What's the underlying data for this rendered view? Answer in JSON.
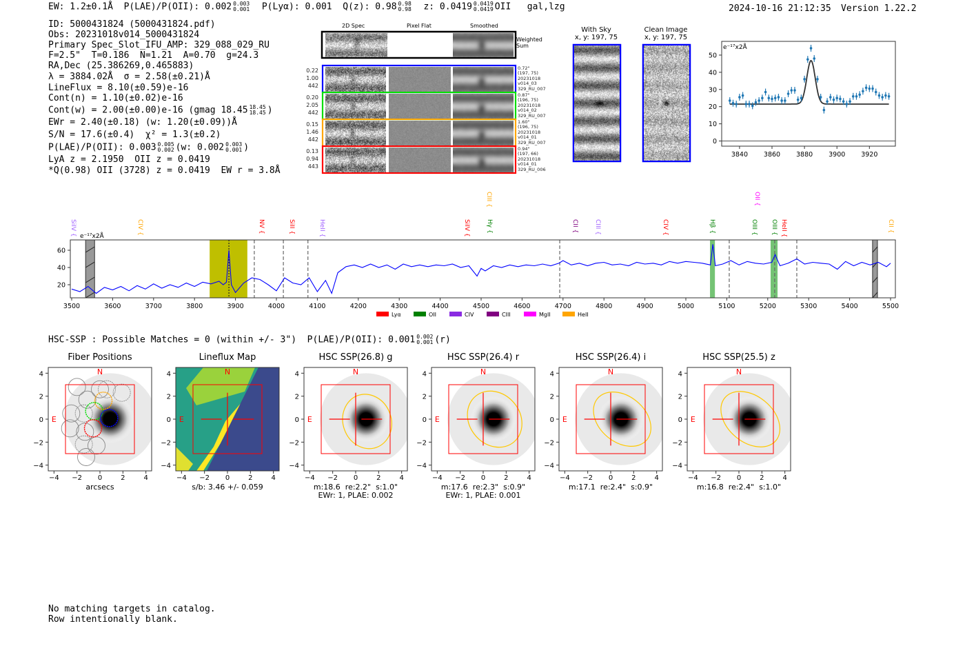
{
  "header": {
    "segments": [
      {
        "t": "EW: 1.2±0.1Å  P(LAE)/P(OII): 0.002"
      },
      {
        "hi": "0.003",
        "lo": "0.001"
      },
      {
        "t": "  P(Lyα): 0.001  Q(z): 0.98"
      },
      {
        "hi": "0.98",
        "lo": "0.98"
      },
      {
        "t": "  z: 0.0419"
      },
      {
        "hi": "0.0419",
        "lo": "0.0419"
      },
      {
        "t": "OII   gal,lzg"
      }
    ],
    "timestamp": "2024-10-16 21:12:35",
    "version": "Version 1.22.2"
  },
  "info_lines": [
    [
      {
        "t": "ID: 5000431824 (5000431824.pdf)"
      }
    ],
    [
      {
        "t": "Obs: 20231018v014_5000431824"
      }
    ],
    [
      {
        "t": "Primary Spec_Slot_IFU_AMP: 329_088_029_RU"
      }
    ],
    [
      {
        "t": "F=2.5\"  T=0.186  N=1.21  A=0.70  g=24.3"
      }
    ],
    [
      {
        "t": "RA,Dec (25.386269,0.465883)"
      }
    ],
    [
      {
        "t": "λ = 3884.02Å  σ = 2.58(±0.21)Å"
      }
    ],
    [
      {
        "t": "LineFlux = 8.10(±0.59)e-16"
      }
    ],
    [
      {
        "t": "Cont(n) = 1.10(±0.02)e-16"
      }
    ],
    [
      {
        "t": "Cont(w) = 2.00(±0.00)e-16 (gmag 18.45"
      },
      {
        "hi": "18.45",
        "lo": "18.45"
      },
      {
        "t": ")"
      }
    ],
    [
      {
        "t": "EWr = 2.40(±0.18) (w: 1.20(±0.09))Å"
      }
    ],
    [
      {
        "t": "S/N = 17.6(±0.4)  χ² = 1.3(±0.2)"
      }
    ],
    [
      {
        "t": "P(LAE)/P(OII): 0.003"
      },
      {
        "hi": "0.005",
        "lo": "0.002"
      },
      {
        "t": "(w: 0.002"
      },
      {
        "hi": "0.003",
        "lo": "0.001"
      },
      {
        "t": ")"
      }
    ],
    [
      {
        "t": "LyA z = 2.1950  OII z = 0.0419"
      }
    ],
    [
      {
        "t": "*Q(0.98) OII (3728) z = 0.0419  EW r = 3.8Å"
      }
    ]
  ],
  "spec2d": {
    "columns": [
      "2D Spec",
      "Pixel Flat",
      "Smoothed"
    ],
    "weighted_label": "Weighted\nSum",
    "rows": [
      {
        "color": "#0000ff",
        "left": "0.22\n1.00\n442",
        "right": "0.72\"\n(197, 75)\n20231018\nv014_03\n329_RU_007"
      },
      {
        "color": "#00dd00",
        "left": "0.20\n2.05\n442",
        "right": "0.87\"\n(196, 75)\n20231018\nv014_02\n329_RU_007"
      },
      {
        "color": "#ffa500",
        "left": "0.15\n1.46\n442",
        "right": "1.60\"\n(196, 75)\n20231018\nv014_01\n329_RU_007"
      },
      {
        "color": "#ff0000",
        "left": "0.13\n0.94\n443",
        "right": "0.94\"\n(197, 66)\n20231018\nv014_01\n329_RU_006"
      }
    ]
  },
  "cutouts": {
    "with_sky": "With Sky\nx, y: 197, 75",
    "clean": "Clean Image\nx, y: 197, 75"
  },
  "chart_data": [
    {
      "type": "scatter",
      "title": "",
      "ylabel": "e⁻¹⁷x2Å",
      "xlim": [
        3829,
        3936
      ],
      "ylim": [
        -3,
        58
      ],
      "xticks": [
        3840,
        3860,
        3880,
        3900,
        3920
      ],
      "yticks": [
        0,
        10,
        20,
        30,
        40,
        50
      ],
      "x": [
        3834,
        3836,
        3838,
        3840,
        3842,
        3844,
        3846,
        3848,
        3850,
        3852,
        3854,
        3856,
        3858,
        3860,
        3862,
        3864,
        3866,
        3868,
        3870,
        3872,
        3874,
        3876,
        3878,
        3880,
        3882,
        3884,
        3886,
        3888,
        3890,
        3892,
        3894,
        3896,
        3898,
        3900,
        3902,
        3904,
        3906,
        3908,
        3910,
        3912,
        3914,
        3916,
        3918,
        3920,
        3922,
        3924,
        3926,
        3928,
        3930,
        3932
      ],
      "y": [
        23.5,
        22,
        21.5,
        25.5,
        26.5,
        21.5,
        21.5,
        20.5,
        22.5,
        23.5,
        25,
        28.5,
        25,
        24.5,
        25,
        25.5,
        23.5,
        23.5,
        27.5,
        29.5,
        29.5,
        24,
        25,
        36,
        47.5,
        54,
        48,
        36,
        25.5,
        18,
        23,
        25.5,
        24,
        25,
        24.5,
        23,
        21.5,
        23,
        26,
        26,
        27,
        29,
        31,
        30.5,
        30.5,
        28.5,
        26.5,
        25.5,
        26.5,
        26
      ],
      "yerr": 2,
      "fit": {
        "continuum": 21.5,
        "amplitude": 25.3,
        "center": 3884.02,
        "sigma": 2.58,
        "range": [
          3834,
          3932
        ]
      },
      "colors": {
        "points": "#1f77b4",
        "fit": "#333333"
      }
    },
    {
      "type": "line",
      "ylabel": "e⁻¹⁷x2Å",
      "xlim": [
        3495,
        5512
      ],
      "ylim": [
        5,
        72
      ],
      "xticks": [
        3500,
        3600,
        3700,
        3800,
        3900,
        4000,
        4100,
        4200,
        4300,
        4400,
        4500,
        4600,
        4700,
        4800,
        4900,
        5000,
        5100,
        5200,
        5300,
        5400,
        5500
      ],
      "yticks": [
        20,
        40,
        60
      ],
      "x": [
        3500,
        3520,
        3540,
        3560,
        3580,
        3600,
        3620,
        3640,
        3660,
        3680,
        3700,
        3720,
        3740,
        3760,
        3780,
        3800,
        3820,
        3840,
        3860,
        3870,
        3878,
        3884,
        3890,
        3900,
        3920,
        3940,
        3960,
        3980,
        4000,
        4020,
        4040,
        4060,
        4080,
        4100,
        4120,
        4135,
        4150,
        4170,
        4190,
        4210,
        4230,
        4250,
        4270,
        4290,
        4310,
        4330,
        4350,
        4370,
        4390,
        4410,
        4430,
        4450,
        4470,
        4490,
        4500,
        4510,
        4530,
        4550,
        4570,
        4590,
        4610,
        4630,
        4650,
        4670,
        4690,
        4700,
        4720,
        4740,
        4760,
        4780,
        4800,
        4820,
        4840,
        4860,
        4880,
        4900,
        4920,
        4940,
        4960,
        4980,
        5000,
        5020,
        5040,
        5060,
        5066,
        5072,
        5090,
        5110,
        5130,
        5150,
        5170,
        5190,
        5210,
        5218,
        5230,
        5250,
        5271,
        5290,
        5310,
        5330,
        5350,
        5370,
        5390,
        5410,
        5430,
        5450,
        5470,
        5490,
        5500
      ],
      "y": [
        15,
        12,
        18,
        10,
        17,
        14,
        18,
        13,
        19,
        15,
        21,
        16,
        20,
        17,
        22,
        18,
        23,
        21,
        24,
        20,
        23,
        60,
        20,
        11,
        22,
        28,
        26,
        20,
        13,
        28,
        22,
        20,
        28,
        12,
        25,
        10,
        34,
        41,
        43,
        40,
        44,
        40,
        43,
        38,
        44,
        41,
        43,
        41,
        43,
        42,
        44,
        40,
        42,
        30,
        39,
        36,
        42,
        40,
        43,
        41,
        43,
        42,
        44,
        42,
        45,
        48,
        43,
        45,
        42,
        45,
        46,
        43,
        44,
        42,
        46,
        44,
        45,
        43,
        47,
        45,
        47,
        46,
        45,
        43,
        67,
        42,
        44,
        48,
        43,
        47,
        45,
        44,
        46,
        55,
        42,
        45,
        50,
        44,
        46,
        45,
        44,
        38,
        47,
        42,
        46,
        43,
        46,
        41,
        45
      ],
      "line_color": "#0000ff",
      "highlight_bands": [
        {
          "range": [
            3837,
            3929
          ],
          "color": "#bfbf00"
        },
        {
          "range": [
            5059,
            5071
          ],
          "color": "#5cb85c"
        },
        {
          "range": [
            5207,
            5224
          ],
          "color": "#5cb85c"
        }
      ],
      "masked_bands": [
        [
          3534,
          3556
        ],
        [
          5456,
          5468
        ]
      ],
      "dashed_lines": [
        3946,
        4017,
        4077,
        4692,
        5106,
        5217,
        5271
      ],
      "dotted_lines": [
        3884
      ],
      "line_labels": [
        {
          "name": "SiIV",
          "wave": 3505,
          "color": "#a060ff",
          "row": 1
        },
        {
          "name": "CIV",
          "wave": 3668,
          "color": "#ffa500",
          "row": 1
        },
        {
          "name": "NV",
          "wave": 3965,
          "color": "#ff0000",
          "row": 1
        },
        {
          "name": "SiII",
          "wave": 4039,
          "color": "#ff0000",
          "row": 1
        },
        {
          "name": "HeII",
          "wave": 4113,
          "color": "#a060ff",
          "row": 1
        },
        {
          "name": "SiIV",
          "wave": 4466,
          "color": "#ff0000",
          "row": 1
        },
        {
          "name": "CIII",
          "wave": 4520,
          "color": "#ffa500",
          "row": 0
        },
        {
          "name": "Hγ",
          "wave": 4522,
          "color": "#008000",
          "row": 1
        },
        {
          "name": "CII",
          "wave": 4731,
          "color": "#800080",
          "row": 1
        },
        {
          "name": "CIII",
          "wave": 4786,
          "color": "#a060ff",
          "row": 1
        },
        {
          "name": "CIV",
          "wave": 4951,
          "color": "#ff0000",
          "row": 1
        },
        {
          "name": "Hβ",
          "wave": 5066,
          "color": "#008000",
          "row": 1
        },
        {
          "name": "OII",
          "wave": 5175,
          "color": "#ff00ff",
          "row": 0
        },
        {
          "name": "OIII",
          "wave": 5168,
          "color": "#008000",
          "row": 1
        },
        {
          "name": "OIII",
          "wave": 5217,
          "color": "#008000",
          "row": 1
        },
        {
          "name": "HeII",
          "wave": 5241,
          "color": "#ff0000",
          "row": 1
        },
        {
          "name": "CII",
          "wave": 5502,
          "color": "#ffa500",
          "row": 1
        }
      ],
      "legend": [
        {
          "name": "Lyα",
          "color": "#ff0000"
        },
        {
          "name": "OII",
          "color": "#008000"
        },
        {
          "name": "CIV",
          "color": "#8a2be2"
        },
        {
          "name": "CIII",
          "color": "#800080"
        },
        {
          "name": "MgII",
          "color": "#ff00ff"
        },
        {
          "name": "HeII",
          "color": "#ffa500"
        }
      ],
      "legend_position": "bottom-center"
    }
  ],
  "hsc": {
    "segments": [
      {
        "t": "HSC-SSP : Possible Matches = 0 (within +/- 3\")  P(LAE)/P(OII): 0.001"
      },
      {
        "hi": "0.002",
        "lo": "0.001"
      },
      {
        "t": "(r)"
      }
    ],
    "panels": [
      {
        "title": "Fiber Positions",
        "caption": "arcsecs",
        "kind": "fiber"
      },
      {
        "title": "Lineflux Map",
        "caption": "s/b: 3.46 +/- 0.059",
        "kind": "flux"
      },
      {
        "title": "HSC SSP(26.8) g",
        "caption": "m:18.6  re:2.2\"  s:1.0\"\nEWr: 1, PLAE: 0.002",
        "kind": "hsc",
        "ell": {
          "cx": 1.0,
          "cy": -0.2,
          "rx": 2.1,
          "ry": 2.4,
          "rot": -20
        }
      },
      {
        "title": "HSC SSP(26.4) r",
        "caption": "m:17.6  re:2.3\"  s:0.9\"\nEWr: 1, PLAE: 0.001",
        "kind": "hsc",
        "ell": {
          "cx": 1.0,
          "cy": 0,
          "rx": 2.2,
          "ry": 2.6,
          "rot": -40
        }
      },
      {
        "title": "HSC SSP(26.4) i",
        "caption": "m:17.1  re:2.4\"  s:0.9\"",
        "kind": "hsc",
        "ell": {
          "cx": 1.0,
          "cy": 0,
          "rx": 2.0,
          "ry": 2.8,
          "rot": -50
        }
      },
      {
        "title": "HSC SSP(25.5) z",
        "caption": "m:16.8  re:2.4\"  s:1.0\"",
        "kind": "hsc",
        "ell": {
          "cx": 1.0,
          "cy": 0,
          "rx": 2.0,
          "ry": 2.9,
          "rot": -50
        }
      }
    ],
    "ticks": [
      "−4",
      "−2",
      "0",
      "2",
      "4"
    ],
    "north": "N",
    "east": "E"
  },
  "footer": [
    "No matching targets in catalog.",
    "Row intentionally blank."
  ]
}
